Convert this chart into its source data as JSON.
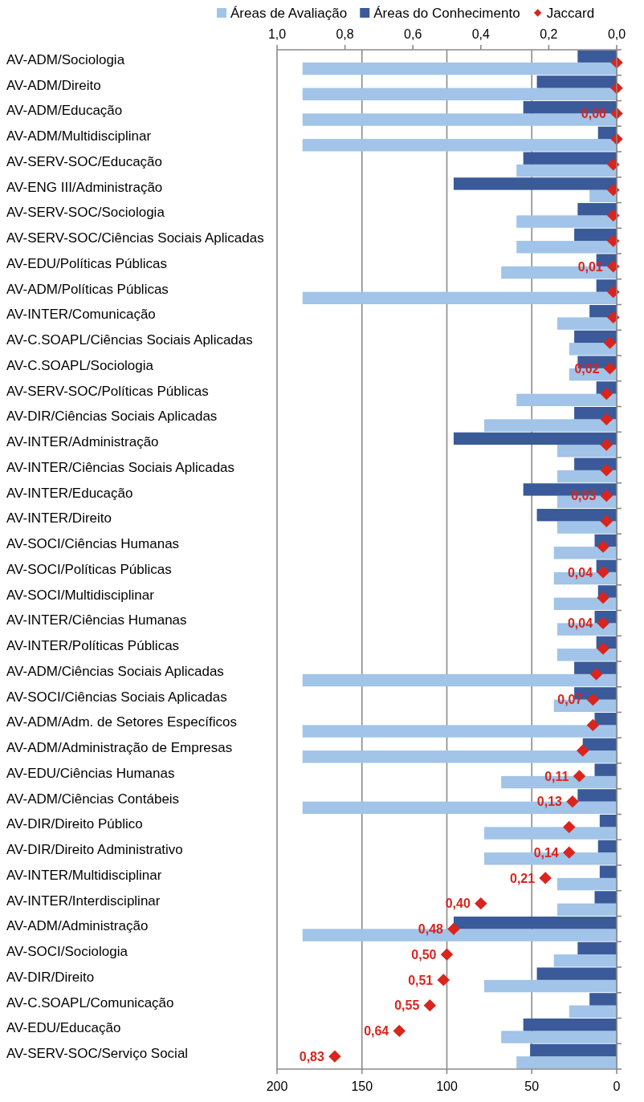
{
  "chart_data": {
    "type": "bar",
    "orientation": "horizontal",
    "categories": [
      "AV-ADM/Sociologia",
      "AV-ADM/Direito",
      "AV-ADM/Educação",
      "AV-ADM/Multidisciplinar",
      "AV-SERV-SOC/Educação",
      "AV-ENG III/Administração",
      "AV-SERV-SOC/Sociologia",
      "AV-SERV-SOC/Ciências Sociais Aplicadas",
      "AV-EDU/Políticas Públicas",
      "AV-ADM/Políticas Públicas",
      "AV-INTER/Comunicação",
      "AV-C.SOAPL/Ciências Sociais Aplicadas",
      "AV-C.SOAPL/Sociologia",
      "AV-SERV-SOC/Políticas Públicas",
      "AV-DIR/Ciências Sociais Aplicadas",
      "AV-INTER/Administração",
      "AV-INTER/Ciências Sociais Aplicadas",
      "AV-INTER/Educação",
      "AV-INTER/Direito",
      "AV-SOCI/Ciências Humanas",
      "AV-SOCI/Políticas Públicas",
      "AV-SOCI/Multidisciplinar",
      "AV-INTER/Ciências Humanas",
      "AV-INTER/Políticas Públicas",
      "AV-ADM/Ciências Sociais Aplicadas",
      "AV-SOCI/Ciências Sociais Aplicadas",
      "AV-ADM/Adm. de Setores Específicos",
      "AV-ADM/Administração de Empresas",
      "AV-EDU/Ciências Humanas",
      "AV-ADM/Ciências Contábeis",
      "AV-DIR/Direito Público",
      "AV-DIR/Direito Administrativo",
      "AV-INTER/Multidisciplinar",
      "AV-INTER/Interdisciplinar",
      "AV-ADM/Administração",
      "AV-SOCI/Sociologia",
      "AV-DIR/Direito",
      "AV-C.SOAPL/Comunicação",
      "AV-EDU/Educação",
      "AV-SERV-SOC/Serviço Social"
    ],
    "series": [
      {
        "name": "Áreas de Avaliação",
        "color": "#a1c4e8",
        "values": [
          185,
          185,
          185,
          185,
          59,
          16,
          59,
          59,
          68,
          185,
          35,
          28,
          28,
          59,
          78,
          35,
          35,
          35,
          35,
          37,
          37,
          37,
          35,
          35,
          185,
          37,
          185,
          185,
          68,
          185,
          78,
          78,
          35,
          35,
          185,
          37,
          78,
          28,
          68,
          59
        ]
      },
      {
        "name": "Áreas do Conhecimento",
        "color": "#3a5a9a",
        "values": [
          23,
          47,
          55,
          11,
          55,
          96,
          23,
          25,
          12,
          12,
          16,
          25,
          23,
          12,
          25,
          96,
          25,
          55,
          47,
          13,
          12,
          11,
          13,
          12,
          25,
          25,
          13,
          20,
          13,
          23,
          10,
          11,
          10,
          13,
          96,
          23,
          47,
          16,
          55,
          51
        ]
      },
      {
        "name": "Jaccard",
        "type": "scatter",
        "axis": "x2",
        "marker": "diamond",
        "color": "#d9251d",
        "values": [
          0.0,
          0.0,
          0.0,
          0.0,
          0.01,
          0.01,
          0.01,
          0.01,
          0.01,
          0.01,
          0.01,
          0.02,
          0.02,
          0.03,
          0.03,
          0.03,
          0.03,
          0.03,
          0.03,
          0.04,
          0.04,
          0.04,
          0.04,
          0.04,
          0.06,
          0.07,
          0.07,
          0.1,
          0.11,
          0.13,
          0.14,
          0.14,
          0.21,
          0.4,
          0.48,
          0.5,
          0.51,
          0.55,
          0.64,
          0.83
        ],
        "value_labels": [
          null,
          null,
          "0,00",
          null,
          null,
          null,
          null,
          null,
          "0,01",
          null,
          null,
          null,
          "0,02",
          null,
          null,
          null,
          null,
          "0,03",
          null,
          null,
          "0,04",
          null,
          "0,04",
          null,
          null,
          "0,07",
          null,
          null,
          "0,11",
          "0,13",
          null,
          "0,14",
          "0,21",
          "0,40",
          "0,48",
          "0,50",
          "0,51",
          "0,55",
          "0,64",
          "0,83"
        ]
      }
    ],
    "xlim": [
      200,
      0
    ],
    "xticks": [
      200,
      150,
      100,
      50,
      0
    ],
    "x2lim": [
      1,
      0
    ],
    "x2ticks": [
      {
        "value": 1,
        "label": "1,0"
      },
      {
        "value": 0.8,
        "label": "0,8"
      },
      {
        "value": 0.6,
        "label": "0,6"
      },
      {
        "value": 0.4,
        "label": "0,4"
      },
      {
        "value": 0.2,
        "label": "0,2"
      },
      {
        "value": 0,
        "label": "0,0"
      }
    ],
    "grid": "x",
    "legend": "top"
  }
}
